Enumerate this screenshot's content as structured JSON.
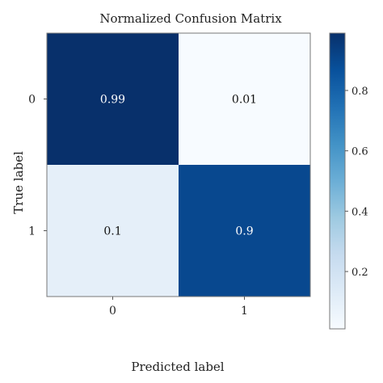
{
  "chart_data": {
    "type": "heatmap",
    "title": "Normalized Confusion Matrix",
    "xlabel": "Predicted label",
    "ylabel": "True label",
    "x_categories": [
      "0",
      "1"
    ],
    "y_categories": [
      "0",
      "1"
    ],
    "values": [
      [
        0.99,
        0.01
      ],
      [
        0.1,
        0.9
      ]
    ],
    "cell_labels": [
      [
        "0.99",
        "0.01"
      ],
      [
        "0.1",
        "0.9"
      ]
    ],
    "colorbar": {
      "range": [
        0.01,
        0.99
      ],
      "ticks": [
        "0.2",
        "0.4",
        "0.6",
        "0.8"
      ],
      "tick_values": [
        0.2,
        0.4,
        0.6,
        0.8
      ],
      "colormap": "Blues"
    },
    "colors": {
      "darkest": "#08306b",
      "lightest": "#f7fbff"
    }
  }
}
